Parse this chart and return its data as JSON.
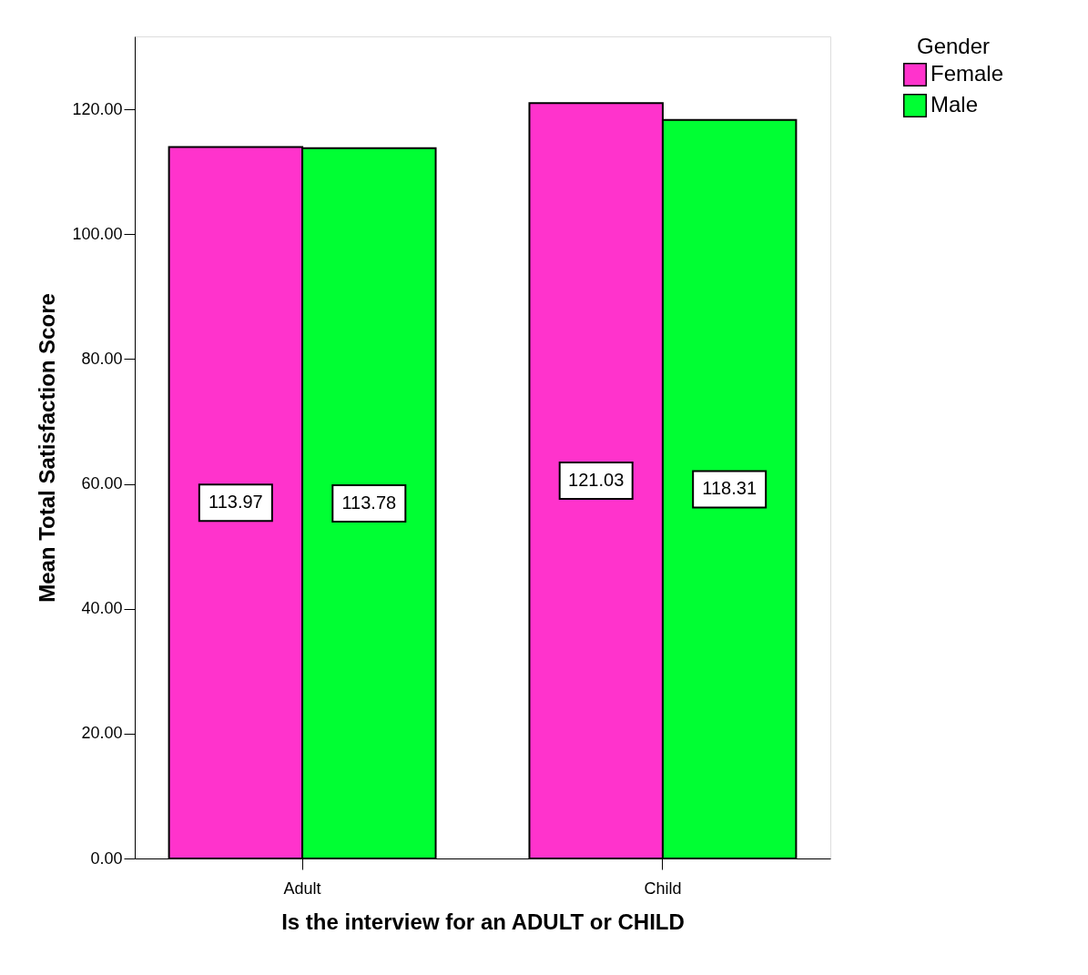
{
  "chart_data": {
    "type": "bar",
    "xlabel": "Is the interview for an ADULT or CHILD",
    "ylabel": "Mean Total Satisfaction Score",
    "legend_title": "Gender",
    "categories": [
      "Adult",
      "Child"
    ],
    "series": [
      {
        "name": "Female",
        "color": "#ff33cc",
        "values": [
          113.97,
          121.03
        ]
      },
      {
        "name": "Male",
        "color": "#00ff33",
        "values": [
          113.78,
          118.31
        ]
      }
    ],
    "ylim": [
      0,
      131.7
    ],
    "yticks": [
      {
        "value": 0,
        "label": "0.00"
      },
      {
        "value": 20,
        "label": "20.00"
      },
      {
        "value": 40,
        "label": "40.00"
      },
      {
        "value": 60,
        "label": "60.00"
      },
      {
        "value": 80,
        "label": "80.00"
      },
      {
        "value": 100,
        "label": "100.00"
      },
      {
        "value": 120,
        "label": "120.00"
      }
    ],
    "data_labels": true,
    "grid": false,
    "legend": "top right"
  }
}
